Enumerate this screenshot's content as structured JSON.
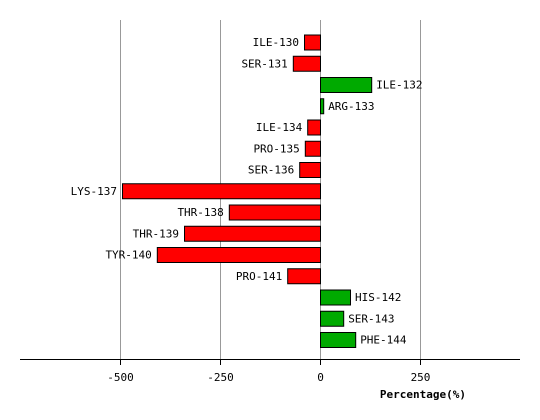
{
  "chart_data": {
    "type": "bar",
    "orientation": "horizontal",
    "categories": [
      "ILE-130",
      "SER-131",
      "ILE-132",
      "ARG-133",
      "ILE-134",
      "PRO-135",
      "SER-136",
      "LYS-137",
      "THR-138",
      "THR-139",
      "TYR-140",
      "PRO-141",
      "HIS-142",
      "SER-143",
      "PHE-144"
    ],
    "values": [
      -40,
      -68,
      128,
      8,
      -32,
      -38,
      -52,
      -495,
      -228,
      -340,
      -408,
      -82,
      75,
      58,
      88
    ],
    "title": "",
    "xlabel": "Percentage(%)",
    "ylabel": "",
    "xlim": [
      -750,
      500
    ],
    "xticks": [
      -500,
      -250,
      0,
      250
    ],
    "xtick_labels": [
      "-500",
      "-250",
      "0",
      "250"
    ],
    "grid": "vertical",
    "colors": {
      "negative": "#ff0000",
      "positive": "#00aa00",
      "outline": "#000000",
      "grid": "#999999"
    }
  }
}
